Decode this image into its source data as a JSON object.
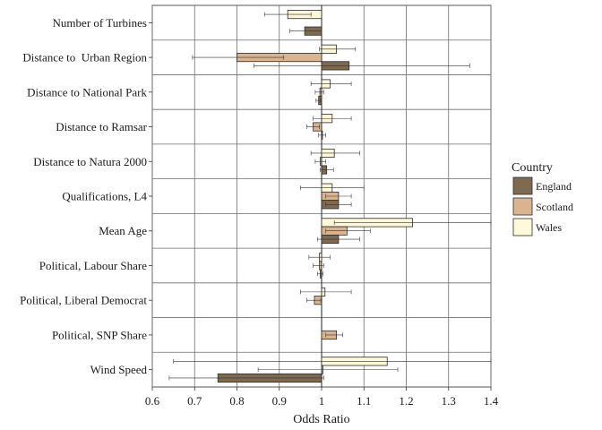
{
  "chart_data": {
    "type": "bar",
    "orientation": "horizontal",
    "xlabel": "Odds Ratio",
    "xlim": [
      0.6,
      1.4
    ],
    "xticks": [
      "0.6",
      "0.7",
      "0.8",
      "0.9",
      "1",
      "1.1",
      "1.2",
      "1.3",
      "1.4"
    ],
    "reference_line": 1,
    "grid": true,
    "legend": {
      "title": "Country",
      "placement": "right"
    },
    "categories": [
      "Number of Turbines",
      "Distance to  Urban Region",
      "Distance to National Park",
      "Distance to Ramsar",
      "Distance to Natura 2000",
      "Qualifications, L4",
      "Mean Age",
      "Political, Labour Share",
      "Political, Liberal Democrat",
      "Political, SNP Share",
      "Wind Speed"
    ],
    "series": [
      {
        "name": "England",
        "color": "#7f6a50",
        "values": [
          0.96,
          1.065,
          0.993,
          1.002,
          1.012,
          1.04,
          1.04,
          0.997,
          null,
          null,
          0.755
        ],
        "ci_low": [
          0.925,
          0.84,
          0.987,
          0.993,
          0.997,
          1.01,
          0.99,
          0.99,
          null,
          null,
          0.64
        ],
        "ci_high": [
          1.0,
          1.35,
          0.997,
          1.01,
          1.028,
          1.07,
          1.09,
          1.003,
          null,
          null,
          1.005
        ]
      },
      {
        "name": "Scotland",
        "color": "#d9b48f",
        "values": [
          null,
          0.8,
          0.996,
          0.98,
          0.997,
          1.04,
          1.06,
          0.995,
          0.983,
          1.035,
          1.003
        ],
        "ci_low": [
          null,
          0.695,
          0.985,
          0.965,
          0.985,
          1.01,
          1.01,
          0.98,
          0.965,
          1.01,
          0.85
        ],
        "ci_high": [
          null,
          0.91,
          1.005,
          0.995,
          1.01,
          1.07,
          1.115,
          1.005,
          0.998,
          1.05,
          1.18
        ]
      },
      {
        "name": "Wales",
        "color": "#fff8d9",
        "values": [
          0.92,
          1.035,
          1.02,
          1.025,
          1.03,
          1.025,
          1.215,
          0.995,
          1.008,
          null,
          1.155
        ],
        "ci_low": [
          0.865,
          0.995,
          0.975,
          0.98,
          0.975,
          0.95,
          1.03,
          0.97,
          0.95,
          null,
          0.65
        ],
        "ci_high": [
          0.975,
          1.08,
          1.07,
          1.07,
          1.09,
          1.1,
          1.4,
          1.02,
          1.07,
          null,
          1.4
        ]
      }
    ]
  }
}
